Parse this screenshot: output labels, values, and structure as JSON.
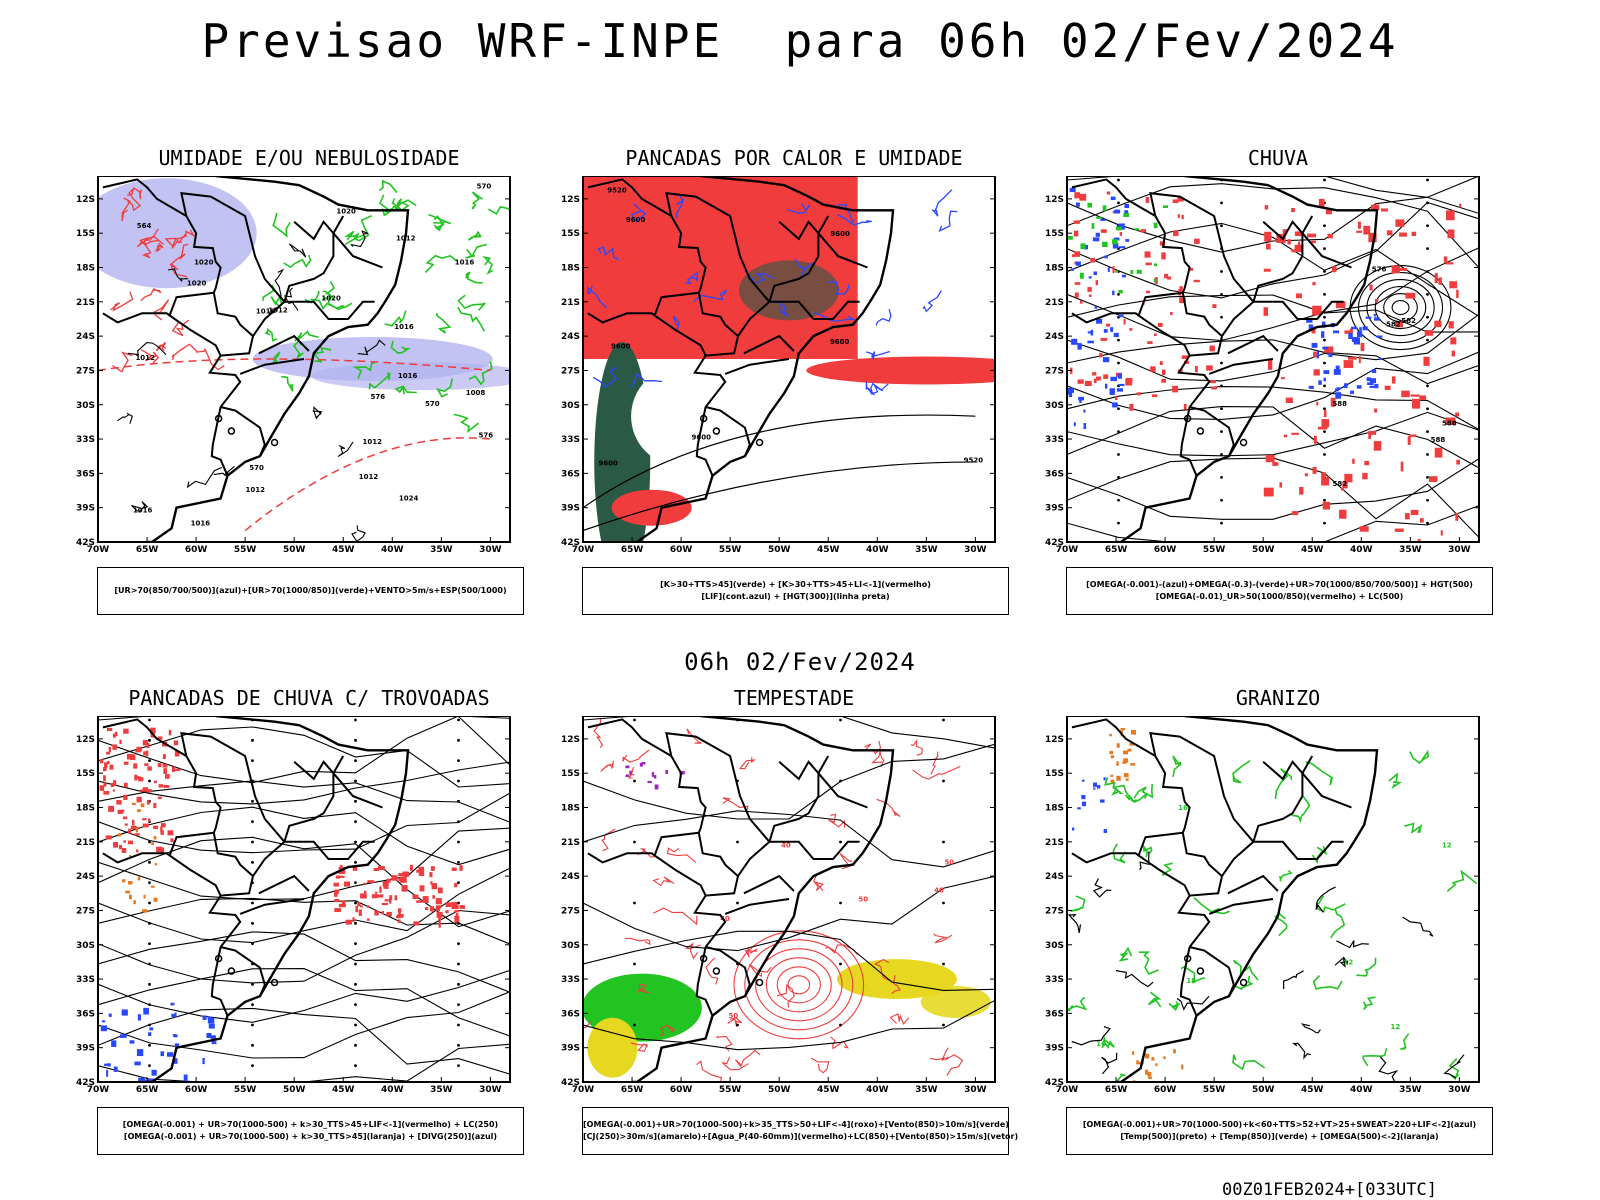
{
  "header": {
    "title": "Previsao WRF-INPE  para 06h 02/Fev/2024"
  },
  "subtitle": "06h 02/Fev/2024",
  "footer": "00Z01FEB2024+[033UTC]",
  "axes": {
    "lat_labels": [
      "12S",
      "15S",
      "18S",
      "21S",
      "24S",
      "27S",
      "30S",
      "33S",
      "36S",
      "39S",
      "42S"
    ],
    "lon_labels": [
      "70W",
      "65W",
      "60W",
      "55W",
      "50W",
      "45W",
      "40W",
      "35W",
      "30W"
    ]
  },
  "colors": {
    "red": "#f03c3c",
    "green": "#22c422",
    "blue": "#2848ff",
    "lavender": "#b4b4f0",
    "darkgreen": "#2a5a46",
    "yellow": "#e6d820",
    "orange": "#e8781e",
    "purple": "#a020c0"
  },
  "panels": [
    {
      "title": "UMIDADE E/OU NEBULOSIDADE",
      "legend": [
        "[UR>70(850/700/500)](azul)+[UR>70(1000/850)](verde)+VENTO>5m/s+ESP(500/1000)"
      ],
      "contour_labels": [
        "1016",
        "1012",
        "1016",
        "1024",
        "1020",
        "1012",
        "1012",
        "1016",
        "1012",
        "1016",
        "1020",
        "1020",
        "1012",
        "1012",
        "1016",
        "1008",
        "1020",
        "1016",
        "576",
        "570",
        "564",
        "576",
        "570",
        "570"
      ]
    },
    {
      "title": "PANCADAS POR CALOR E UMIDADE",
      "legend": [
        "[K>30+TTS>45](verde) + [K>30+TTS>45+LI<-1](vermelho)",
        "[LIF](cont.azul) + [HGT(300)](linha preta)"
      ],
      "contour_labels": [
        "9600",
        "9600",
        "9600",
        "9600",
        "9600",
        "9520",
        "9600",
        "9520"
      ]
    },
    {
      "title": "CHUVA",
      "legend": [
        "[OMEGA(-0.001)-(azul)+OMEGA(-0.3)-(verde)+UR>70(1000/850/700/500)] + HGT(500)",
        "[OMEGA(-0.01)_UR>50(1000/850)(vermelho) + LC(500)"
      ],
      "contour_labels": [
        "588",
        "588",
        "582",
        "588",
        "582",
        "576",
        "582"
      ]
    },
    {
      "title": "PANCADAS DE CHUVA C/ TROVOADAS",
      "legend": [
        "[OMEGA(-0.001) + UR>70(1000-500) + k>30_TTS>45+LIF<-1](vermelho) + LC(250)",
        "[OMEGA(-0.001) + UR>70(1000-500) + k>30_TTS>45](laranja) + [DIVG(250)](azul)"
      ],
      "contour_labels": []
    },
    {
      "title": "TEMPESTADE",
      "legend": [
        "[OMEGA(-0.001)+UR>70(1000-500)+k>35_TTS>50+LIF<-4](roxo)+[Vento(850)>10m/s](verde)",
        "[CJ(250)>30m/s](amarelo)+[Agua_P(40-60mm)](vermelho)+LC(850)+[Vento(850)>15m/s](vetor)"
      ],
      "contour_labels": [
        "50",
        "40",
        "40",
        "50",
        "40",
        "50"
      ]
    },
    {
      "title": "GRANIZO",
      "legend": [
        "[OMEGA(-0.001)+UR>70(1000-500)+k<60+TTS>52+VT>25+SWEAT>220+LIF<-2](azul)",
        "[Temp(500)](preto) + [Temp(850)](verde) + [OMEGA(500)<-2](laranja)"
      ],
      "contour_labels": [
        "12",
        "16",
        "16",
        "18",
        "12",
        "12"
      ]
    }
  ]
}
